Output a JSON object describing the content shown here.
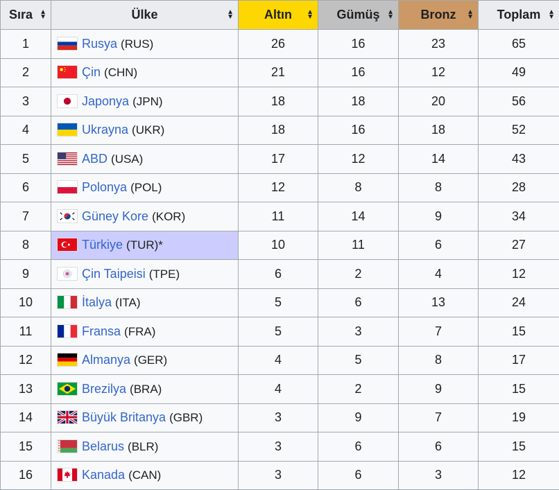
{
  "headers": [
    {
      "label": "Sıra",
      "bg": "#eaecf0"
    },
    {
      "label": "Ülke",
      "bg": "#eaecf0"
    },
    {
      "label": "Altın",
      "bg": "#ffd700"
    },
    {
      "label": "Gümüş",
      "bg": "#c0c0c0"
    },
    {
      "label": "Bronz",
      "bg": "#cc9966"
    },
    {
      "label": "Toplam",
      "bg": "#eaecf0"
    }
  ],
  "sort_icon": "sort-arrows-icon",
  "host_color": "#ccccff",
  "rows": [
    {
      "rank": "1",
      "name": "Rusya",
      "code": "(RUS)",
      "flag": "russia",
      "gold": "26",
      "silver": "16",
      "bronze": "23",
      "total": "65"
    },
    {
      "rank": "2",
      "name": "Çin",
      "code": "(CHN)",
      "flag": "china",
      "gold": "21",
      "silver": "16",
      "bronze": "12",
      "total": "49"
    },
    {
      "rank": "3",
      "name": "Japonya",
      "code": "(JPN)",
      "flag": "japan",
      "gold": "18",
      "silver": "18",
      "bronze": "20",
      "total": "56"
    },
    {
      "rank": "4",
      "name": "Ukrayna",
      "code": "(UKR)",
      "flag": "ukraine",
      "gold": "18",
      "silver": "16",
      "bronze": "18",
      "total": "52"
    },
    {
      "rank": "5",
      "name": "ABD",
      "code": "(USA)",
      "flag": "usa",
      "gold": "17",
      "silver": "12",
      "bronze": "14",
      "total": "43"
    },
    {
      "rank": "6",
      "name": "Polonya",
      "code": "(POL)",
      "flag": "poland",
      "gold": "12",
      "silver": "8",
      "bronze": "8",
      "total": "28"
    },
    {
      "rank": "7",
      "name": "Güney Kore",
      "code": "(KOR)",
      "flag": "korea",
      "gold": "11",
      "silver": "14",
      "bronze": "9",
      "total": "34"
    },
    {
      "rank": "8",
      "name": "Türkiye",
      "code": "(TUR)*",
      "flag": "turkey",
      "host": true,
      "gold": "10",
      "silver": "11",
      "bronze": "6",
      "total": "27"
    },
    {
      "rank": "9",
      "name": "Çin Taipeisi",
      "code": "(TPE)",
      "flag": "taipei",
      "gold": "6",
      "silver": "2",
      "bronze": "4",
      "total": "12"
    },
    {
      "rank": "10",
      "name": "İtalya",
      "code": "(ITA)",
      "flag": "italy",
      "gold": "5",
      "silver": "6",
      "bronze": "13",
      "total": "24"
    },
    {
      "rank": "11",
      "name": "Fransa",
      "code": "(FRA)",
      "flag": "france",
      "gold": "5",
      "silver": "3",
      "bronze": "7",
      "total": "15"
    },
    {
      "rank": "12",
      "name": "Almanya",
      "code": "(GER)",
      "flag": "germany",
      "gold": "4",
      "silver": "5",
      "bronze": "8",
      "total": "17"
    },
    {
      "rank": "13",
      "name": "Brezilya",
      "code": "(BRA)",
      "flag": "brazil",
      "gold": "4",
      "silver": "2",
      "bronze": "9",
      "total": "15"
    },
    {
      "rank": "14",
      "name": "Büyük Britanya",
      "code": "(GBR)",
      "flag": "uk",
      "gold": "3",
      "silver": "9",
      "bronze": "7",
      "total": "19"
    },
    {
      "rank": "15",
      "name": "Belarus",
      "code": "(BLR)",
      "flag": "belarus",
      "gold": "3",
      "silver": "6",
      "bronze": "6",
      "total": "15"
    },
    {
      "rank": "16",
      "name": "Kanada",
      "code": "(CAN)",
      "flag": "canada",
      "gold": "3",
      "silver": "6",
      "bronze": "3",
      "total": "12"
    }
  ]
}
